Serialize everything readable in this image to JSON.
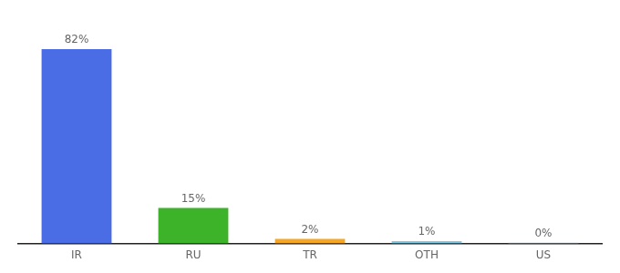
{
  "chart_data": {
    "type": "bar",
    "categories": [
      "IR",
      "RU",
      "TR",
      "OTH",
      "US"
    ],
    "values": [
      82,
      15,
      2,
      1,
      0.3
    ],
    "value_labels": [
      "82%",
      "15%",
      "2%",
      "1%",
      "0%"
    ],
    "data_labels": true,
    "colors": [
      "#4a6de5",
      "#3cb329",
      "#f5a623",
      "#7ec8e3",
      "#b0c8d8"
    ],
    "ylim": [
      0,
      95
    ],
    "grid": false,
    "tick_labels": "x"
  }
}
